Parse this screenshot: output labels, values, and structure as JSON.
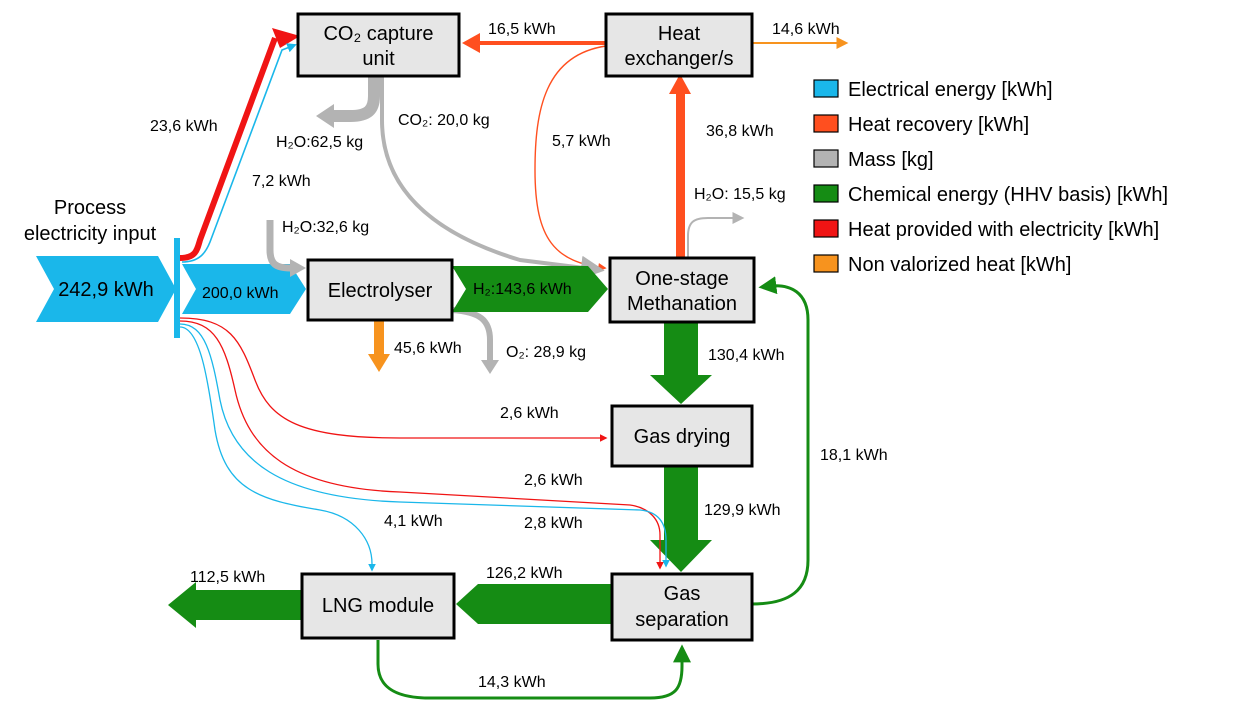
{
  "colors": {
    "electrical": "#1ab7ea",
    "heat_recovery": "#ff4f1f",
    "mass": "#b3b3b3",
    "chemical": "#158c14",
    "heat_electric": "#f01414",
    "non_valorized": "#f7931e"
  },
  "input": {
    "title_line1": "Process",
    "title_line2": "electricity input",
    "value": "242,9 kWh"
  },
  "nodes": {
    "co2_capture_line1": "CO₂ capture",
    "co2_capture_line2": "unit",
    "heat_exchanger_line1": "Heat",
    "heat_exchanger_line2": "exchanger/s",
    "electrolyser": "Electrolyser",
    "methanation_line1": "One-stage",
    "methanation_line2": "Methanation",
    "gas_drying": "Gas drying",
    "gas_separation_line1": "Gas",
    "gas_separation_line2": "separation",
    "lng_module": "LNG module"
  },
  "flows": {
    "heat_to_capture": "16,5 kWh",
    "heat_out": "14,6 kWh",
    "elec_to_capture": "23,6 kWh",
    "heat_elec_to_capture": "7,2 kWh",
    "water_capture": "H₂O:62,5 kg",
    "co2_mass": "CO₂: 20,0 kg",
    "heat_to_meth": "5,7 kWh",
    "meth_to_hx": "36,8 kWh",
    "water_meth": "H₂O: 15,5 kg",
    "water_electrolyser": "H₂O:32,6 kg",
    "elec_to_electrolyser": "200,0 kWh",
    "h2": "H₂:143,6 kWh",
    "electrolyser_heat": "45,6 kWh",
    "o2": "O₂: 28,9 kg",
    "meth_to_drying": "130,4 kWh",
    "elec_to_drying": "2,6 kWh",
    "recycle": "18,1 kWh",
    "elec_to_separation_a": "2,6 kWh",
    "drying_to_separation": "129,9 kWh",
    "elec_to_separation_b": "2,8 kWh",
    "elec_to_lng": "4,1 kWh",
    "lng_out": "112,5 kWh",
    "separation_to_lng": "126,2 kWh",
    "lng_to_separation": "14,3 kWh"
  },
  "legend": [
    {
      "label": "Electrical energy [kWh]",
      "color": "#1ab7ea"
    },
    {
      "label": "Heat recovery [kWh]",
      "color": "#ff4f1f"
    },
    {
      "label": "Mass [kg]",
      "color": "#b3b3b3"
    },
    {
      "label": "Chemical energy (HHV basis) [kWh]",
      "color": "#158c14"
    },
    {
      "label": "Heat provided with electricity [kWh]",
      "color": "#f01414"
    },
    {
      "label": "Non valorized heat [kWh]",
      "color": "#f7931e"
    }
  ]
}
